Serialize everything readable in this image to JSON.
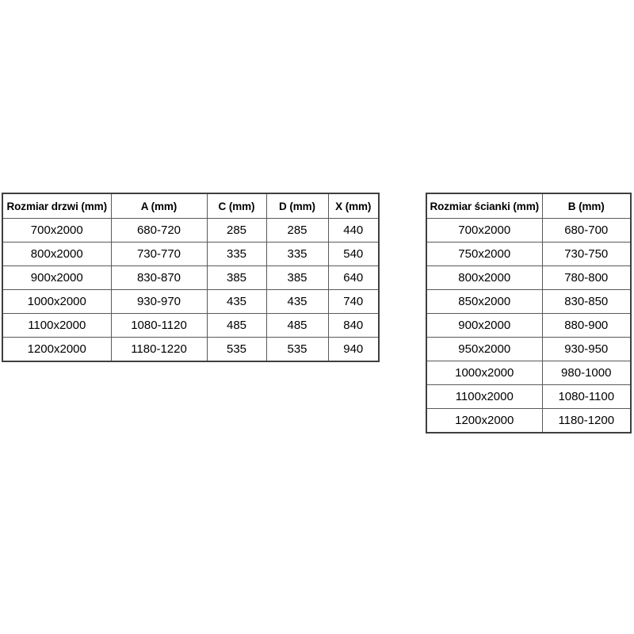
{
  "colors": {
    "background": "#ffffff",
    "border_inner": "#595959",
    "border_outer": "#3f3f3f",
    "text": "#000000"
  },
  "tables": {
    "doors": {
      "name": "door-sizes-table",
      "headers": [
        "Rozmiar drzwi (mm)",
        "A (mm)",
        "C (mm)",
        "D (mm)",
        "X (mm)"
      ],
      "rows": [
        [
          "700x2000",
          "680-720",
          "285",
          "285",
          "440"
        ],
        [
          "800x2000",
          "730-770",
          "335",
          "335",
          "540"
        ],
        [
          "900x2000",
          "830-870",
          "385",
          "385",
          "640"
        ],
        [
          "1000x2000",
          "930-970",
          "435",
          "435",
          "740"
        ],
        [
          "1100x2000",
          "1080-1120",
          "485",
          "485",
          "840"
        ],
        [
          "1200x2000",
          "1180-1220",
          "535",
          "535",
          "940"
        ]
      ]
    },
    "walls": {
      "name": "wall-sizes-table",
      "headers": [
        "Rozmiar ścianki (mm)",
        "B (mm)"
      ],
      "rows": [
        [
          "700x2000",
          "680-700"
        ],
        [
          "750x2000",
          "730-750"
        ],
        [
          "800x2000",
          "780-800"
        ],
        [
          "850x2000",
          "830-850"
        ],
        [
          "900x2000",
          "880-900"
        ],
        [
          "950x2000",
          "930-950"
        ],
        [
          "1000x2000",
          "980-1000"
        ],
        [
          "1100x2000",
          "1080-1100"
        ],
        [
          "1200x2000",
          "1180-1200"
        ]
      ]
    }
  }
}
